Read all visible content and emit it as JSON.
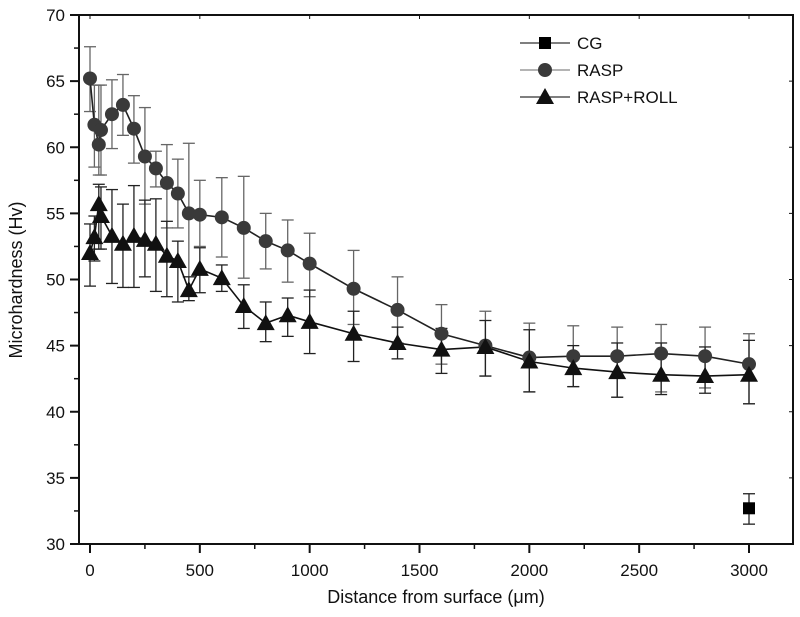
{
  "chart_data": {
    "type": "line",
    "title": "",
    "xlabel": "Distance from surface (μm)",
    "ylabel": "Microhardness (Hv)",
    "xlim": [
      -60,
      3200
    ],
    "ylim": [
      30,
      70
    ],
    "xticks": [
      0,
      500,
      1000,
      1500,
      2000,
      2500,
      3000
    ],
    "xtick_labels": [
      "0",
      "500",
      "1000",
      "1500",
      "2000",
      "2500",
      "3000"
    ],
    "yticks": [
      30,
      35,
      40,
      45,
      50,
      55,
      60,
      65,
      70
    ],
    "ytick_labels": [
      "30",
      "35",
      "40",
      "45",
      "50",
      "55",
      "60",
      "65",
      "70"
    ],
    "grid": false,
    "legend_position": "top-right",
    "series": [
      {
        "name": "CG",
        "marker": "square",
        "color": "#000000",
        "line_color": "#555555",
        "x": [
          3000
        ],
        "y": [
          32.7
        ],
        "err_low": [
          1.2
        ],
        "err_high": [
          1.1
        ]
      },
      {
        "name": "RASP",
        "marker": "circle",
        "color": "#3a3a3a",
        "line_color": "#222222",
        "x": [
          0,
          20,
          40,
          50,
          100,
          150,
          200,
          250,
          300,
          350,
          400,
          450,
          500,
          600,
          700,
          800,
          900,
          1000,
          1200,
          1400,
          1600,
          1800,
          2000,
          2200,
          2400,
          2600,
          2800,
          3000
        ],
        "y": [
          65.2,
          61.7,
          60.2,
          61.3,
          62.5,
          63.2,
          61.4,
          59.3,
          58.4,
          57.3,
          56.5,
          55.0,
          54.9,
          54.7,
          53.9,
          52.9,
          52.2,
          51.2,
          49.3,
          47.7,
          45.9,
          45.0,
          44.1,
          44.2,
          44.2,
          44.4,
          44.2,
          43.6
        ],
        "err_low": [
          2.5,
          3.2,
          2.3,
          3.4,
          2.6,
          2.3,
          2.6,
          3.6,
          1.4,
          3.4,
          2.6,
          4.8,
          2.4,
          3.0,
          3.8,
          2.1,
          2.4,
          2.5,
          2.7,
          2.5,
          2.3,
          2.3,
          2.6,
          2.3,
          3.1,
          2.9,
          2.4,
          3.0
        ],
        "err_high": [
          2.4,
          3.0,
          4.5,
          3.4,
          2.6,
          2.3,
          2.5,
          3.7,
          1.3,
          2.9,
          2.6,
          5.3,
          2.6,
          3.0,
          3.9,
          2.1,
          2.3,
          2.3,
          2.9,
          2.5,
          2.2,
          2.6,
          2.6,
          2.3,
          2.2,
          2.2,
          2.2,
          2.3
        ]
      },
      {
        "name": "RASP+ROLL",
        "marker": "triangle",
        "color": "#111111",
        "line_color": "#111111",
        "x": [
          0,
          20,
          40,
          50,
          100,
          150,
          200,
          250,
          300,
          350,
          400,
          450,
          500,
          600,
          700,
          800,
          900,
          1000,
          1200,
          1400,
          1600,
          1800,
          2000,
          2200,
          2400,
          2600,
          2800,
          3000
        ],
        "y": [
          52.0,
          53.2,
          55.7,
          54.8,
          53.3,
          52.7,
          53.3,
          53.0,
          52.7,
          51.8,
          51.4,
          49.2,
          50.8,
          50.1,
          48.0,
          46.7,
          47.3,
          46.8,
          45.9,
          45.2,
          44.7,
          44.9,
          43.8,
          43.3,
          43.0,
          42.8,
          42.7,
          42.8
        ],
        "err_low": [
          2.5,
          1.8,
          3.4,
          2.5,
          3.6,
          3.3,
          3.9,
          2.8,
          3.6,
          3.1,
          3.1,
          0.8,
          1.8,
          1.0,
          1.7,
          1.4,
          1.6,
          2.4,
          2.1,
          1.2,
          1.8,
          2.2,
          2.3,
          1.4,
          1.9,
          1.5,
          1.3,
          2.2
        ],
        "err_high": [
          2.2,
          1.6,
          1.5,
          2.2,
          3.5,
          3.0,
          3.8,
          3.0,
          3.4,
          2.6,
          1.5,
          1.0,
          1.6,
          1.0,
          1.6,
          1.6,
          1.3,
          2.4,
          1.7,
          1.2,
          1.6,
          2.0,
          2.4,
          1.7,
          2.2,
          2.4,
          2.2,
          2.6
        ]
      }
    ]
  }
}
